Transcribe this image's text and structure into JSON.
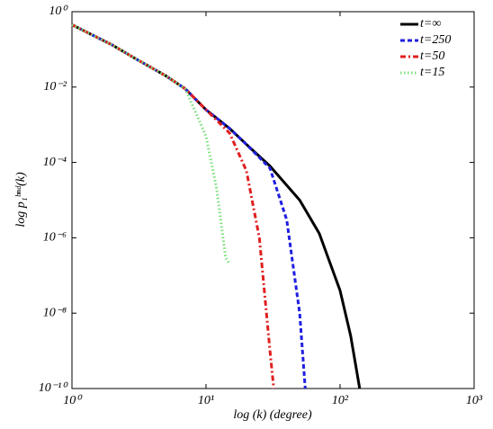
{
  "chart_data": {
    "type": "line",
    "xlabel": "log (k) (degree)",
    "ylabel": "log p₁ᵇⁿᵈ(k)",
    "xscale": "log",
    "yscale": "log",
    "xlim": [
      1,
      1000
    ],
    "ylim": [
      1e-10,
      1
    ],
    "xticks": [
      {
        "value": 1,
        "label": "10⁰"
      },
      {
        "value": 10,
        "label": "10¹"
      },
      {
        "value": 100,
        "label": "10²"
      },
      {
        "value": 1000,
        "label": "10³"
      }
    ],
    "yticks": [
      {
        "value": 1,
        "label": "10⁰"
      },
      {
        "value": 0.01,
        "label": "10⁻²"
      },
      {
        "value": 0.0001,
        "label": "10⁻⁴"
      },
      {
        "value": 1e-06,
        "label": "10⁻⁶"
      },
      {
        "value": 1e-08,
        "label": "10⁻⁸"
      },
      {
        "value": 1e-10,
        "label": "10⁻¹⁰"
      }
    ],
    "legend": "upper right",
    "series": [
      {
        "name": "t=∞",
        "color": "#000000",
        "line_style": "solid",
        "x": [
          1,
          2,
          3,
          5,
          7,
          10,
          15,
          20,
          30,
          50,
          70,
          100,
          120,
          140
        ],
        "values": [
          0.45,
          0.13,
          0.056,
          0.02,
          0.009,
          0.0025,
          0.0008,
          0.0003,
          8e-05,
          1e-05,
          1.3e-06,
          4e-08,
          2.5e-09,
          1e-10
        ]
      },
      {
        "name": "t=250",
        "color": "#1f1fe0",
        "line_style": "dashed",
        "x": [
          1,
          2,
          3,
          5,
          7,
          10,
          15,
          20,
          30,
          40,
          50,
          55
        ],
        "values": [
          0.45,
          0.13,
          0.056,
          0.02,
          0.009,
          0.0025,
          0.0008,
          0.0003,
          7e-05,
          3e-06,
          1e-08,
          1e-10
        ]
      },
      {
        "name": "t=50",
        "color": "#e01f1f",
        "line_style": "dashdot",
        "x": [
          1,
          2,
          3,
          5,
          7,
          10,
          15,
          20,
          25,
          30,
          32
        ],
        "values": [
          0.45,
          0.13,
          0.056,
          0.02,
          0.009,
          0.0025,
          0.0006,
          6e-05,
          1e-06,
          1e-09,
          1e-10
        ]
      },
      {
        "name": "t=15",
        "color": "#7be07b",
        "line_style": "dotted",
        "x": [
          1,
          2,
          3,
          5,
          7,
          10,
          12,
          14,
          15
        ],
        "values": [
          0.45,
          0.13,
          0.056,
          0.02,
          0.009,
          0.0005,
          2e-05,
          3e-07,
          2e-07
        ]
      }
    ]
  }
}
